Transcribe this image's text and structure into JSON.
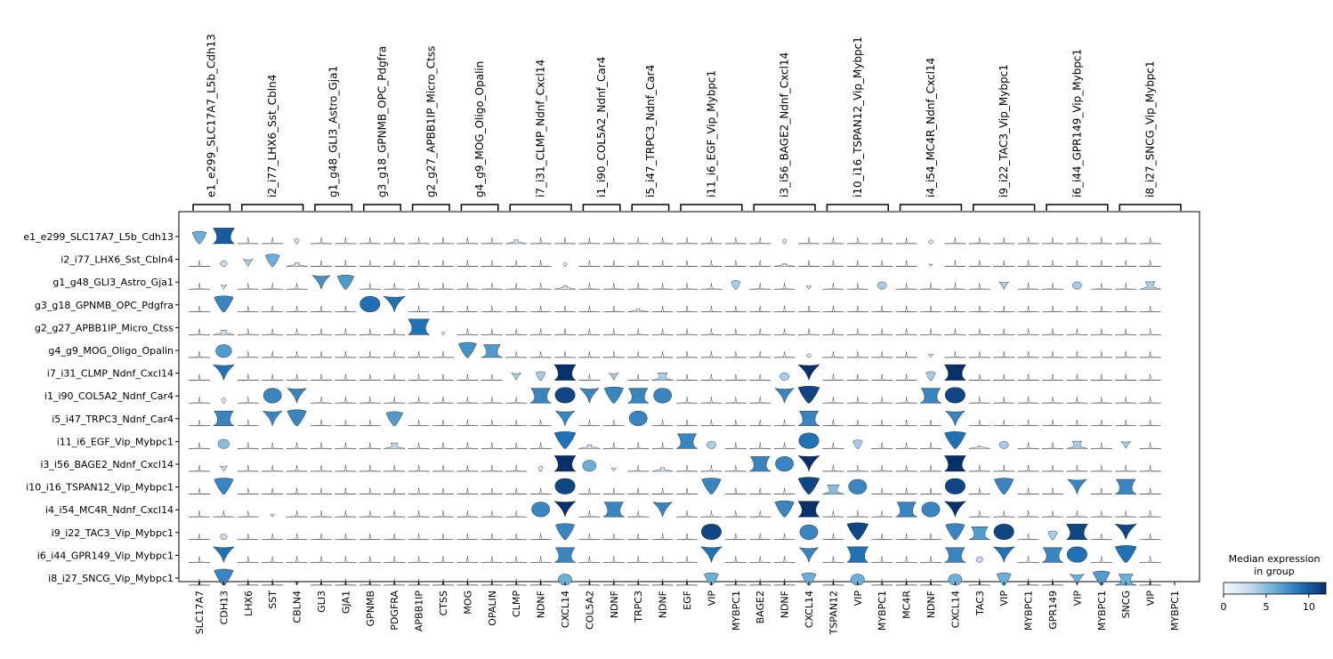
{
  "chart_data": {
    "type": "stacked_violin",
    "rows": [
      "e1_e299_SLC17A7_L5b_Cdh13",
      "i2_i77_LHX6_Sst_Cbln4",
      "g1_g48_GLI3_Astro_Gja1",
      "g3_g18_GPNMB_OPC_Pdgfra",
      "g2_g27_APBB1IP_Micro_Ctss",
      "g4_g9_MOG_Oligo_Opalin",
      "i7_i31_CLMP_Ndnf_Cxcl14",
      "i1_i90_COL5A2_Ndnf_Car4",
      "i5_i47_TRPC3_Ndnf_Car4",
      "i11_i6_EGF_Vip_Mybpc1",
      "i3_i56_BAGE2_Ndnf_Cxcl14",
      "i10_i16_TSPAN12_Vip_Mybpc1",
      "i4_i54_MC4R_Ndnf_Cxcl14",
      "i9_i22_TAC3_Vip_Mybpc1",
      "i6_i44_GPR149_Vip_Mybpc1",
      "i8_i27_SNCG_Vip_Mybpc1"
    ],
    "groups": [
      {
        "label": "e1_e299_SLC17A7_L5b_Cdh13",
        "genes": [
          "SLC17A7",
          "CDH13"
        ]
      },
      {
        "label": "i2_i77_LHX6_Sst_Cbln4",
        "genes": [
          "LHX6",
          "SST",
          "CBLN4"
        ]
      },
      {
        "label": "g1_g48_GLI3_Astro_Gja1",
        "genes": [
          "GLI3",
          "GJA1"
        ]
      },
      {
        "label": "g3_g18_GPNMB_OPC_Pdgfra",
        "genes": [
          "GPNMB",
          "PDGFRA"
        ]
      },
      {
        "label": "g2_g27_APBB1IP_Micro_Ctss",
        "genes": [
          "APBB1IP",
          "CTSS"
        ]
      },
      {
        "label": "g4_g9_MOG_Oligo_Opalin",
        "genes": [
          "MOG",
          "OPALIN"
        ]
      },
      {
        "label": "i7_i31_CLMP_Ndnf_Cxcl14",
        "genes": [
          "CLMP",
          "NDNF",
          "CXCL14"
        ]
      },
      {
        "label": "i1_i90_COL5A2_Ndnf_Car4",
        "genes": [
          "COL5A2",
          "NDNF"
        ]
      },
      {
        "label": "i5_i47_TRPC3_Ndnf_Car4",
        "genes": [
          "TRPC3",
          "NDNF"
        ]
      },
      {
        "label": "i11_i6_EGF_Vip_Mybpc1",
        "genes": [
          "EGF",
          "VIP",
          "MYBPC1"
        ]
      },
      {
        "label": "i3_i56_BAGE2_Ndnf_Cxcl14",
        "genes": [
          "BAGE2",
          "NDNF",
          "CXCL14"
        ]
      },
      {
        "label": "i10_i16_TSPAN12_Vip_Mybpc1",
        "genes": [
          "TSPAN12",
          "VIP",
          "MYBPC1"
        ]
      },
      {
        "label": "i4_i54_MC4R_Ndnf_Cxcl14",
        "genes": [
          "MC4R",
          "NDNF",
          "CXCL14"
        ]
      },
      {
        "label": "i9_i22_TAC3_Vip_Mybpc1",
        "genes": [
          "TAC3",
          "VIP",
          "MYBPC1"
        ]
      },
      {
        "label": "i6_i44_GPR149_Vip_Mybpc1",
        "genes": [
          "GPR149",
          "VIP",
          "MYBPC1"
        ]
      },
      {
        "label": "i8_i27_SNCG_Vip_Mybpc1",
        "genes": [
          "SNCG",
          "VIP",
          "MYBPC1"
        ]
      }
    ],
    "median_expression": [
      [
        6,
        10,
        0.3,
        0.3,
        2,
        0.3,
        0.3,
        0.3,
        0.3,
        0.3,
        0.3,
        0.3,
        0.3,
        2,
        0.3,
        0.3,
        0.3,
        0.3,
        0.3,
        0.3,
        0.3,
        0.3,
        0.3,
        0.3,
        1.8,
        0.3,
        0.3,
        0.3,
        0.3,
        0.3,
        2,
        0.3,
        0.3,
        0.3,
        0.3,
        0.3,
        0.3,
        0.3,
        0.3,
        0.3
      ],
      [
        0.3,
        3,
        4,
        6,
        2,
        0.3,
        0.3,
        0.3,
        0.3,
        0.3,
        0.3,
        0.3,
        0.3,
        0.3,
        0.3,
        1.5,
        0.3,
        0.3,
        0.3,
        0.3,
        0.3,
        0.3,
        0.3,
        0.3,
        1.5,
        0.3,
        0.3,
        0.3,
        0.3,
        0.3,
        1.5,
        0.3,
        0.3,
        0.3,
        0.3,
        0.3,
        0.3,
        0.3,
        0.3,
        0.3
      ],
      [
        0.3,
        2.5,
        0.3,
        0.3,
        0.3,
        7.5,
        7,
        0.3,
        0.3,
        0.3,
        0.3,
        0.3,
        0.3,
        0.3,
        0.3,
        2,
        0.3,
        0.3,
        0.3,
        0.3,
        0.3,
        0.3,
        4,
        0.3,
        0.3,
        2,
        0.3,
        0.3,
        4,
        0.3,
        0.3,
        0.3,
        0.3,
        4,
        0.3,
        0.3,
        4,
        0.3,
        0.3,
        4
      ],
      [
        0.3,
        8,
        0.3,
        0.3,
        0.3,
        0.3,
        0.3,
        9,
        9,
        0.3,
        0.3,
        0.3,
        0.3,
        0.3,
        0.3,
        0.3,
        0.3,
        0.3,
        1.5,
        0.3,
        0.3,
        0.3,
        0.3,
        0.3,
        0.3,
        0.3,
        0.3,
        0.3,
        0.3,
        0.3,
        0.3,
        0.3,
        0.3,
        0.3,
        0.3,
        0.3,
        0.3,
        0.3,
        0.3,
        0.3
      ],
      [
        0.3,
        2.5,
        0.3,
        0.3,
        0.3,
        0.3,
        0.3,
        0.3,
        0.3,
        9,
        1.5,
        0.3,
        0.3,
        0.3,
        0.3,
        0.3,
        0.3,
        0.3,
        0.3,
        0.3,
        0.3,
        0.3,
        0.3,
        0.3,
        0.3,
        0.3,
        0.3,
        0.3,
        0.3,
        0.3,
        0.3,
        0.3,
        0.3,
        0.3,
        0.3,
        0.3,
        0.3,
        0.3,
        0.3,
        0.3
      ],
      [
        0.3,
        7,
        0.3,
        0.3,
        0.3,
        0.3,
        0.3,
        0.3,
        0.3,
        0.3,
        0.3,
        7.5,
        7,
        0.3,
        0.3,
        0.3,
        0.3,
        0.3,
        0.3,
        0.3,
        0.3,
        0.3,
        0.3,
        0.3,
        0.3,
        2,
        0.3,
        0.3,
        0.3,
        0.3,
        2,
        0.3,
        0.3,
        0.3,
        0.3,
        0.3,
        0.3,
        0.3,
        0.3,
        0.3
      ],
      [
        0.3,
        9,
        0.3,
        0.5,
        0.3,
        0.3,
        0.3,
        0.3,
        0.3,
        0.3,
        0.3,
        0.3,
        0.3,
        4,
        4,
        12,
        0.3,
        4,
        0.3,
        4,
        0.3,
        0.3,
        0.3,
        0.3,
        4,
        12,
        0.3,
        0.3,
        0.3,
        0.3,
        4,
        12,
        0.3,
        0.3,
        0.3,
        0.3,
        0.3,
        0.3,
        0.3,
        0.3
      ],
      [
        0.3,
        2,
        0.3,
        8,
        8,
        0.3,
        0.3,
        0.3,
        0.3,
        0.3,
        0.3,
        0.3,
        0.3,
        0.3,
        8,
        11,
        8,
        8,
        8,
        8,
        0.3,
        0.3,
        0.3,
        0.3,
        8,
        11,
        0.3,
        0.3,
        0.3,
        0.3,
        8,
        11,
        0.3,
        0.3,
        0.3,
        0.3,
        0.3,
        0.3,
        0.3,
        0.3
      ],
      [
        0.3,
        8,
        0.3,
        8,
        8,
        0.3,
        0.3,
        0.3,
        7,
        0.3,
        0.3,
        0.3,
        0.3,
        0.3,
        0.3,
        8,
        0.3,
        0.3,
        8,
        0.3,
        0.3,
        0.3,
        0.3,
        0.3,
        0.3,
        8,
        0.3,
        0.3,
        0.3,
        0.3,
        0.3,
        8,
        0.3,
        0.3,
        0.3,
        0.3,
        0.3,
        0.3,
        0.3,
        0.3
      ],
      [
        0.3,
        5,
        0.3,
        0.3,
        0.3,
        0.3,
        0.3,
        0.3,
        3,
        0.3,
        0.3,
        0.3,
        0.3,
        0.3,
        0.3,
        9,
        2,
        0.3,
        0.3,
        0.3,
        8,
        4,
        0.3,
        0.3,
        0.3,
        9,
        0.3,
        4,
        0.3,
        0.3,
        0.3,
        9,
        1,
        4,
        0.3,
        0.3,
        4,
        0.3,
        4,
        0.3
      ],
      [
        0.3,
        3,
        0.3,
        0.5,
        0.3,
        0.3,
        0.3,
        0.3,
        0.3,
        0.3,
        0.3,
        0.3,
        0.3,
        0.3,
        2,
        12,
        6,
        2,
        0.3,
        2,
        0.3,
        0.3,
        0.3,
        8,
        8,
        12,
        0.3,
        0.3,
        0.3,
        0.3,
        0.3,
        12,
        0.3,
        0.3,
        0.3,
        0.3,
        0.3,
        0.3,
        0.3,
        0.3
      ],
      [
        0.3,
        8,
        0.3,
        0.3,
        0.3,
        0.3,
        0.3,
        0.3,
        0.3,
        0.3,
        0.3,
        0.3,
        0.3,
        0.3,
        0.3,
        11,
        0.3,
        0.3,
        0.3,
        0.3,
        0.3,
        8,
        0.3,
        0.3,
        0.3,
        11,
        5,
        8,
        0.3,
        0.3,
        0.3,
        11,
        0.3,
        8,
        0.3,
        0.3,
        8,
        0.3,
        8,
        0.3
      ],
      [
        0.3,
        0.5,
        0.3,
        1.5,
        0.3,
        0.3,
        0.3,
        0.3,
        0.3,
        0.3,
        0.3,
        0.3,
        0.3,
        0.3,
        8,
        12,
        0.3,
        8,
        0.3,
        8,
        0.3,
        0.3,
        0.3,
        0.3,
        8,
        12,
        0.3,
        0.3,
        0.3,
        8,
        8,
        12,
        0.3,
        0.3,
        0.3,
        0.3,
        0.3,
        0.3,
        0.3,
        0.3
      ],
      [
        0.3,
        3,
        0.3,
        0.3,
        0.3,
        0.3,
        0.3,
        0.3,
        0.3,
        0.3,
        0.3,
        0.3,
        0.3,
        0.3,
        0.3,
        8,
        0.3,
        0.3,
        0.3,
        0.3,
        0.3,
        11,
        0.3,
        0.3,
        0.3,
        8,
        0.3,
        11,
        0.3,
        0.3,
        0.3,
        8,
        7,
        11,
        0.3,
        4,
        11,
        0.3,
        11,
        0.3
      ],
      [
        0.3,
        9,
        0.3,
        0.3,
        0.3,
        0.3,
        0.3,
        0.3,
        0.3,
        0.3,
        0.3,
        0.3,
        0.3,
        0.3,
        0.3,
        8,
        0.3,
        0.3,
        0.3,
        0.3,
        0.3,
        9,
        0.3,
        0.3,
        0.3,
        8,
        0.3,
        9,
        0.3,
        0.3,
        0.3,
        8,
        3,
        9,
        0.3,
        8,
        9,
        0.3,
        9,
        0.3
      ],
      [
        0.3,
        8,
        0.3,
        0.3,
        2,
        0.3,
        0.3,
        0.3,
        0.3,
        0.3,
        0.3,
        0.3,
        0.3,
        0.3,
        0.3,
        6,
        0.3,
        0.3,
        0.3,
        0.3,
        0.3,
        6,
        0.3,
        0.3,
        0.3,
        6,
        0.3,
        6,
        0.3,
        0.3,
        0.3,
        6,
        0.3,
        6,
        0.3,
        0.3,
        6,
        7,
        6,
        0.3
      ]
    ],
    "colorbar": {
      "title_line1": "Median expression",
      "title_line2": "in group",
      "ticks": [
        "0",
        "5",
        "10"
      ],
      "range": [
        0,
        12
      ],
      "colormap": [
        "#f7fbff",
        "#c6dbef",
        "#6baed6",
        "#2171b5",
        "#08306b"
      ]
    }
  }
}
